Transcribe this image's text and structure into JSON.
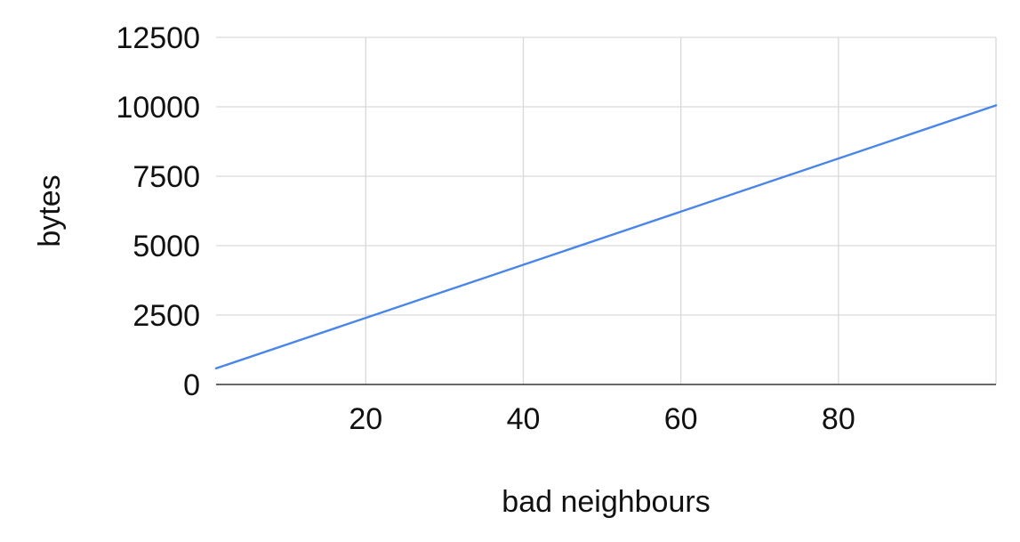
{
  "chart_data": {
    "type": "line",
    "title": "",
    "xlabel": "bad neighbours",
    "ylabel": "bytes",
    "xlim": [
      1,
      100
    ],
    "ylim": [
      0,
      12500
    ],
    "x_ticks": [
      20,
      40,
      60,
      80
    ],
    "y_ticks": [
      0,
      2500,
      5000,
      7500,
      10000,
      12500
    ],
    "grid": true,
    "legend": "none",
    "series": [
      {
        "color": "#4a86e8",
        "x": [
          1,
          100
        ],
        "y": [
          580,
          10050
        ]
      }
    ]
  }
}
